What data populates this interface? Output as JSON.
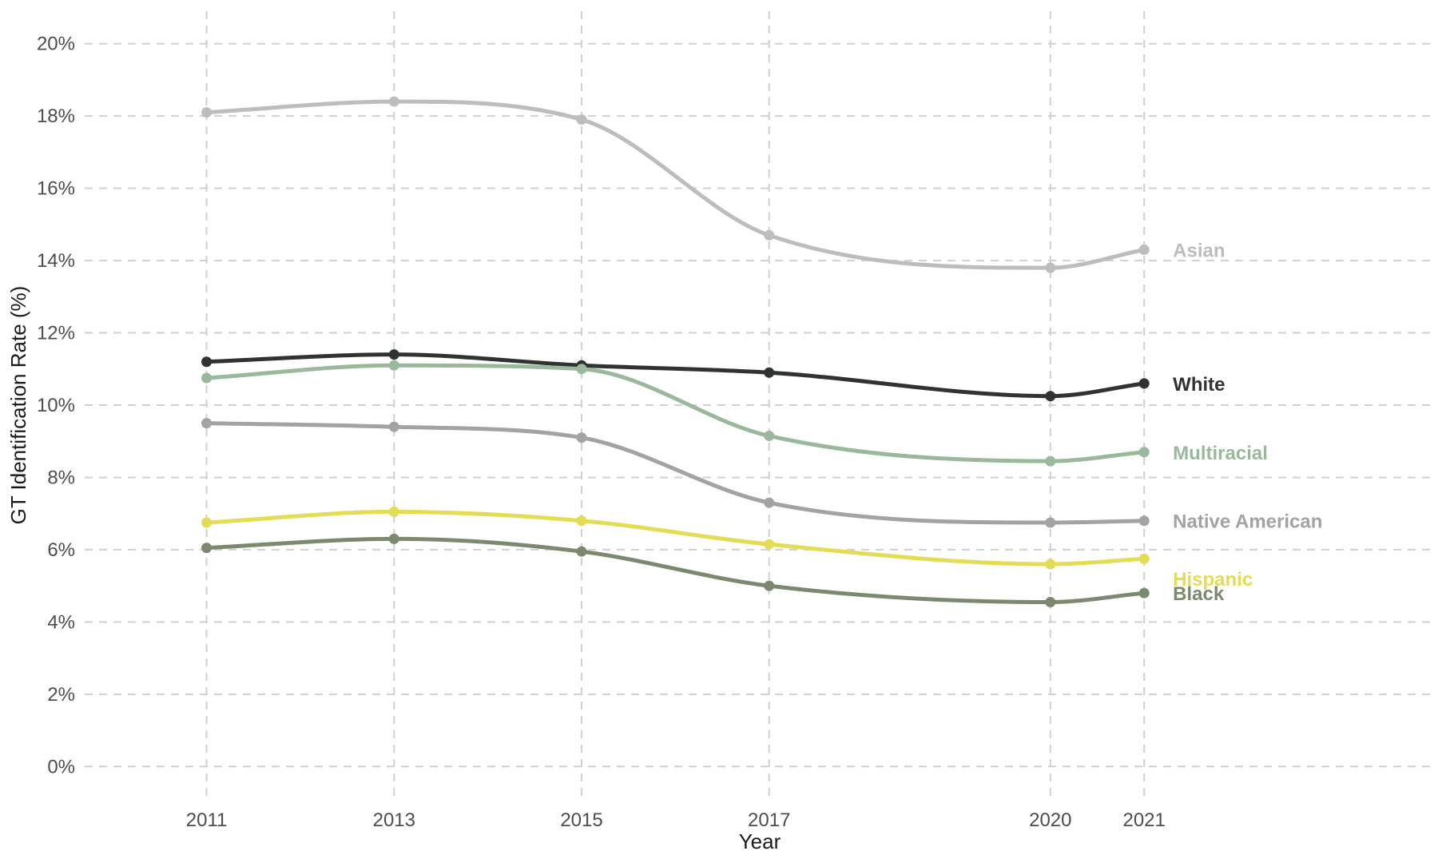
{
  "chart_data": {
    "type": "line",
    "title": "",
    "xlabel": "Year",
    "ylabel": "GT Identification Rate (%)",
    "x": [
      2011,
      2013,
      2015,
      2017,
      2020,
      2021
    ],
    "x_tick_labels": [
      "2011",
      "2013",
      "2015",
      "2017",
      "2020",
      "2021"
    ],
    "xlim": [
      2009.7,
      2024.1
    ],
    "ylim": [
      -0.9,
      20.9
    ],
    "y_ticks": [
      0,
      2,
      4,
      6,
      8,
      10,
      12,
      14,
      16,
      18,
      20
    ],
    "y_tick_labels": [
      "0%",
      "2%",
      "4%",
      "6%",
      "8%",
      "10%",
      "12%",
      "14%",
      "16%",
      "18%",
      "20%"
    ],
    "grid": true,
    "legend": "direct labels at right end of lines",
    "series": [
      {
        "name": "Asian",
        "label": "Asian",
        "color": "#bdbdbd",
        "label_offset_value": 0,
        "values": [
          18.1,
          18.4,
          17.9,
          14.7,
          13.8,
          14.3
        ]
      },
      {
        "name": "White",
        "label": "White",
        "color": "#2f3331",
        "label_offset_value": 0,
        "values": [
          11.2,
          11.4,
          11.1,
          10.9,
          10.25,
          10.6
        ]
      },
      {
        "name": "Multiracial",
        "label": "Multiracial",
        "color": "#9ab89c",
        "label_offset_value": 0,
        "values": [
          10.75,
          11.1,
          11.0,
          9.15,
          8.45,
          8.7
        ]
      },
      {
        "name": "Native American",
        "label": "Native American",
        "color": "#a3a3a3",
        "label_offset_value": 0,
        "values": [
          9.5,
          9.4,
          9.1,
          7.3,
          6.75,
          6.8
        ]
      },
      {
        "name": "Hispanic",
        "label": "Hispanic",
        "color": "#e5dc56",
        "label_offset_value": -0.55,
        "values": [
          6.75,
          7.05,
          6.8,
          6.15,
          5.6,
          5.75
        ]
      },
      {
        "name": "Black",
        "label": "Black",
        "color": "#7b8a6e",
        "label_offset_value": 0,
        "values": [
          6.05,
          6.3,
          5.95,
          5.0,
          4.55,
          4.8
        ]
      }
    ]
  }
}
